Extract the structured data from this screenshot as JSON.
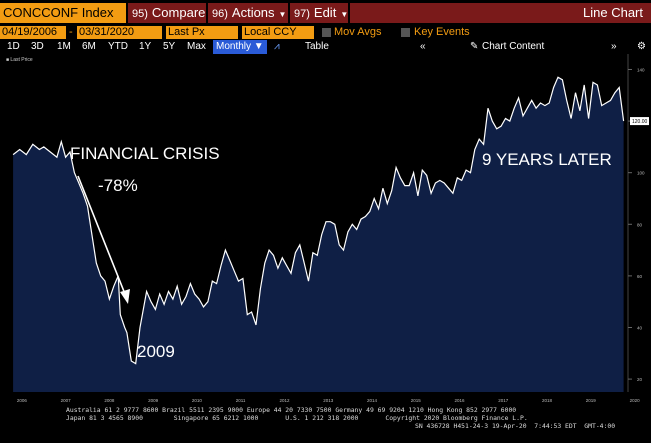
{
  "toolbar": {
    "ticker": "CONCCONF Index",
    "menus": [
      {
        "num": "95)",
        "label": "Compare"
      },
      {
        "num": "96)",
        "label": "Actions"
      },
      {
        "num": "97)",
        "label": "Edit"
      }
    ],
    "title": "Line Chart"
  },
  "fields": {
    "start_date": "04/19/2006",
    "dash": "-",
    "end_date": "03/31/2020",
    "price_field": "Last Px",
    "currency": "Local CCY",
    "mov_avgs": "Mov Avgs",
    "key_events": "Key Events"
  },
  "periods": [
    "1D",
    "3D",
    "1M",
    "6M",
    "YTD",
    "1Y",
    "5Y",
    "Max"
  ],
  "frequency": "Monthly",
  "table_label": "Table",
  "chart_content_label": "Chart Content",
  "chart_data": {
    "type": "line",
    "legend": "Last Price",
    "x_ticks": [
      "2006",
      "2007",
      "2008",
      "2009",
      "2010",
      "2011",
      "2012",
      "2013",
      "2014",
      "2015",
      "2016",
      "2017",
      "2018",
      "2019",
      "2020"
    ],
    "y_ticks": [
      20,
      40,
      60,
      80,
      100,
      120,
      140
    ],
    "ylim": [
      15,
      146
    ],
    "last_value_label": "120.00",
    "series": [
      {
        "values": [
          [
            2006.3,
            107
          ],
          [
            2006.45,
            109
          ],
          [
            2006.6,
            107
          ],
          [
            2006.75,
            111
          ],
          [
            2006.9,
            109
          ],
          [
            2007.0,
            110
          ],
          [
            2007.15,
            108
          ],
          [
            2007.3,
            106
          ],
          [
            2007.4,
            112
          ],
          [
            2007.5,
            106
          ],
          [
            2007.6,
            108
          ],
          [
            2007.7,
            100
          ],
          [
            2007.8,
            96
          ],
          [
            2007.9,
            92
          ],
          [
            2008.0,
            87
          ],
          [
            2008.1,
            76
          ],
          [
            2008.2,
            65
          ],
          [
            2008.3,
            60
          ],
          [
            2008.4,
            58
          ],
          [
            2008.5,
            51
          ],
          [
            2008.6,
            56
          ],
          [
            2008.7,
            60
          ],
          [
            2008.75,
            45
          ],
          [
            2008.85,
            40
          ],
          [
            2008.9,
            38
          ],
          [
            2009.0,
            27
          ],
          [
            2009.1,
            26
          ],
          [
            2009.2,
            40
          ],
          [
            2009.35,
            54
          ],
          [
            2009.45,
            50
          ],
          [
            2009.55,
            47
          ],
          [
            2009.65,
            53
          ],
          [
            2009.75,
            49
          ],
          [
            2009.85,
            54
          ],
          [
            2009.95,
            51
          ],
          [
            2010.05,
            56
          ],
          [
            2010.15,
            49
          ],
          [
            2010.25,
            52
          ],
          [
            2010.35,
            57
          ],
          [
            2010.45,
            53
          ],
          [
            2010.55,
            51
          ],
          [
            2010.65,
            48
          ],
          [
            2010.75,
            50
          ],
          [
            2010.85,
            58
          ],
          [
            2010.95,
            57
          ],
          [
            2011.05,
            64
          ],
          [
            2011.15,
            70
          ],
          [
            2011.25,
            66
          ],
          [
            2011.35,
            62
          ],
          [
            2011.45,
            58
          ],
          [
            2011.55,
            59
          ],
          [
            2011.65,
            45
          ],
          [
            2011.75,
            46
          ],
          [
            2011.85,
            41
          ],
          [
            2011.95,
            55
          ],
          [
            2012.05,
            65
          ],
          [
            2012.15,
            70
          ],
          [
            2012.25,
            68
          ],
          [
            2012.35,
            63
          ],
          [
            2012.45,
            67
          ],
          [
            2012.55,
            64
          ],
          [
            2012.65,
            61
          ],
          [
            2012.75,
            69
          ],
          [
            2012.85,
            72
          ],
          [
            2012.95,
            65
          ],
          [
            2013.05,
            58
          ],
          [
            2013.15,
            69
          ],
          [
            2013.25,
            68
          ],
          [
            2013.35,
            76
          ],
          [
            2013.45,
            81
          ],
          [
            2013.55,
            81
          ],
          [
            2013.65,
            80
          ],
          [
            2013.75,
            72
          ],
          [
            2013.85,
            70
          ],
          [
            2013.95,
            77
          ],
          [
            2014.05,
            80
          ],
          [
            2014.15,
            78
          ],
          [
            2014.25,
            82
          ],
          [
            2014.35,
            83
          ],
          [
            2014.45,
            85
          ],
          [
            2014.55,
            90
          ],
          [
            2014.65,
            86
          ],
          [
            2014.75,
            94
          ],
          [
            2014.85,
            88
          ],
          [
            2014.95,
            93
          ],
          [
            2015.05,
            102
          ],
          [
            2015.15,
            98
          ],
          [
            2015.25,
            95
          ],
          [
            2015.35,
            95
          ],
          [
            2015.45,
            100
          ],
          [
            2015.55,
            91
          ],
          [
            2015.65,
            101
          ],
          [
            2015.75,
            99
          ],
          [
            2015.85,
            92
          ],
          [
            2015.95,
            96
          ],
          [
            2016.05,
            97
          ],
          [
            2016.15,
            96
          ],
          [
            2016.25,
            94
          ],
          [
            2016.35,
            92
          ],
          [
            2016.45,
            98
          ],
          [
            2016.55,
            97
          ],
          [
            2016.65,
            101
          ],
          [
            2016.75,
            100
          ],
          [
            2016.85,
            109
          ],
          [
            2016.95,
            113
          ],
          [
            2017.05,
            111
          ],
          [
            2017.15,
            125
          ],
          [
            2017.25,
            120
          ],
          [
            2017.35,
            117
          ],
          [
            2017.45,
            118
          ],
          [
            2017.55,
            121
          ],
          [
            2017.65,
            120
          ],
          [
            2017.75,
            125
          ],
          [
            2017.85,
            129
          ],
          [
            2017.95,
            122
          ],
          [
            2018.05,
            125
          ],
          [
            2018.15,
            128
          ],
          [
            2018.25,
            125
          ],
          [
            2018.35,
            127
          ],
          [
            2018.45,
            126
          ],
          [
            2018.55,
            127
          ],
          [
            2018.65,
            133
          ],
          [
            2018.75,
            137
          ],
          [
            2018.85,
            136
          ],
          [
            2018.95,
            128
          ],
          [
            2019.05,
            121
          ],
          [
            2019.15,
            131
          ],
          [
            2019.25,
            124
          ],
          [
            2019.35,
            134
          ],
          [
            2019.45,
            121
          ],
          [
            2019.55,
            135
          ],
          [
            2019.65,
            134
          ],
          [
            2019.75,
            126
          ],
          [
            2019.85,
            127
          ],
          [
            2019.95,
            128
          ],
          [
            2020.05,
            131
          ],
          [
            2020.15,
            133
          ],
          [
            2020.25,
            120
          ]
        ]
      }
    ],
    "annotations": {
      "crisis_title": "FINANCIAL CRISIS",
      "crisis_drop": "-78%",
      "bottom_year": "2009",
      "later": "9 YEARS LATER"
    }
  },
  "footer": {
    "line1": "Australia 61 2 9777 8600 Brazil 5511 2395 9000 Europe 44 20 7330 7500 Germany 49 69 9204 1210 Hong Kong 852 2977 6000",
    "line2": "Japan 81 3 4565 8900        Singapore 65 6212 1000       U.S. 1 212 318 2000       Copyright 2020 Bloomberg Finance L.P.",
    "line3": "SN 436728 H451-24-3 19-Apr-20  7:44:53 EDT  GMT-4:00"
  },
  "colors": {
    "accent": "#f39c12",
    "menu": "#7a1a1a",
    "fill": "#0f1f45",
    "line": "#ffffff",
    "last_value_box": "#ffffff"
  }
}
